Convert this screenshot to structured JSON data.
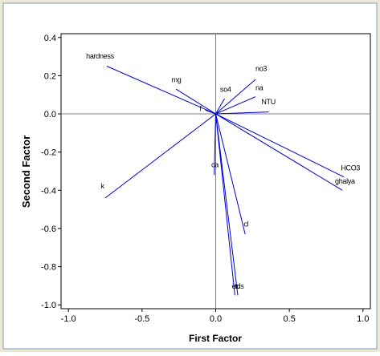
{
  "chart_data": {
    "type": "scatter",
    "subtype": "loading-plot",
    "title": "",
    "xlabel": "First Factor",
    "ylabel": "Second Factor",
    "xlim": [
      -1.05,
      1.05
    ],
    "ylim": [
      -1.02,
      0.42
    ],
    "xticks": [
      -1.0,
      -0.5,
      0.0,
      0.5,
      1.0
    ],
    "xtick_labels": [
      "-1.0",
      "-0.5",
      "0.0",
      "0.5",
      "1.0"
    ],
    "yticks": [
      0.4,
      0.2,
      0.0,
      -0.2,
      -0.4,
      -0.6,
      -0.8,
      -1.0
    ],
    "ytick_labels": [
      "0.4",
      "0.2",
      "0.0",
      "-0.2",
      "-0.4",
      "-0.6",
      "-0.8",
      "-1.0"
    ],
    "grid": false,
    "legend": false,
    "colors": {
      "vector": "#0000cc",
      "background": "#ece9d8",
      "plot": "#ffffff",
      "zero_line": "#7f7f7f",
      "text": "#000000"
    },
    "vectors": [
      {
        "label": "hardness",
        "x": -0.74,
        "y": 0.25
      },
      {
        "label": "mg",
        "x": -0.27,
        "y": 0.13
      },
      {
        "label": "so4",
        "x": 0.06,
        "y": 0.08
      },
      {
        "label": "no3",
        "x": 0.27,
        "y": 0.18
      },
      {
        "label": "na",
        "x": 0.27,
        "y": 0.09
      },
      {
        "label": "NTU",
        "x": 0.36,
        "y": 0.01
      },
      {
        "label": "f",
        "x": -0.07,
        "y": 0.02
      },
      {
        "label": "HCO3",
        "x": 0.87,
        "y": -0.33
      },
      {
        "label": "ghalya",
        "x": 0.86,
        "y": -0.4
      },
      {
        "label": "k",
        "x": -0.75,
        "y": -0.44
      },
      {
        "label": "ca",
        "x": -0.01,
        "y": -0.32
      },
      {
        "label": "cl",
        "x": 0.2,
        "y": -0.63
      },
      {
        "label": "ec",
        "x": 0.13,
        "y": -0.95
      },
      {
        "label": "tds",
        "x": 0.15,
        "y": -0.95
      }
    ],
    "point_labels": [
      {
        "text": "hardness",
        "x": -0.88,
        "y": 0.29
      },
      {
        "text": "mg",
        "x": -0.3,
        "y": 0.165
      },
      {
        "text": "so4",
        "x": 0.03,
        "y": 0.115
      },
      {
        "text": "no3",
        "x": 0.27,
        "y": 0.225
      },
      {
        "text": "na",
        "x": 0.27,
        "y": 0.125
      },
      {
        "text": "NTU",
        "x": 0.31,
        "y": 0.05
      },
      {
        "text": "f",
        "x": -0.11,
        "y": 0.015
      },
      {
        "text": "HCO3",
        "x": 0.85,
        "y": -0.295
      },
      {
        "text": "ghalya",
        "x": 0.81,
        "y": -0.365
      },
      {
        "text": "k",
        "x": -0.78,
        "y": -0.39
      },
      {
        "text": "ca",
        "x": -0.03,
        "y": -0.28
      },
      {
        "text": "cl",
        "x": 0.19,
        "y": -0.59
      },
      {
        "text": "ec",
        "x": 0.11,
        "y": -0.915
      },
      {
        "text": "tds",
        "x": 0.13,
        "y": -0.915
      }
    ]
  }
}
